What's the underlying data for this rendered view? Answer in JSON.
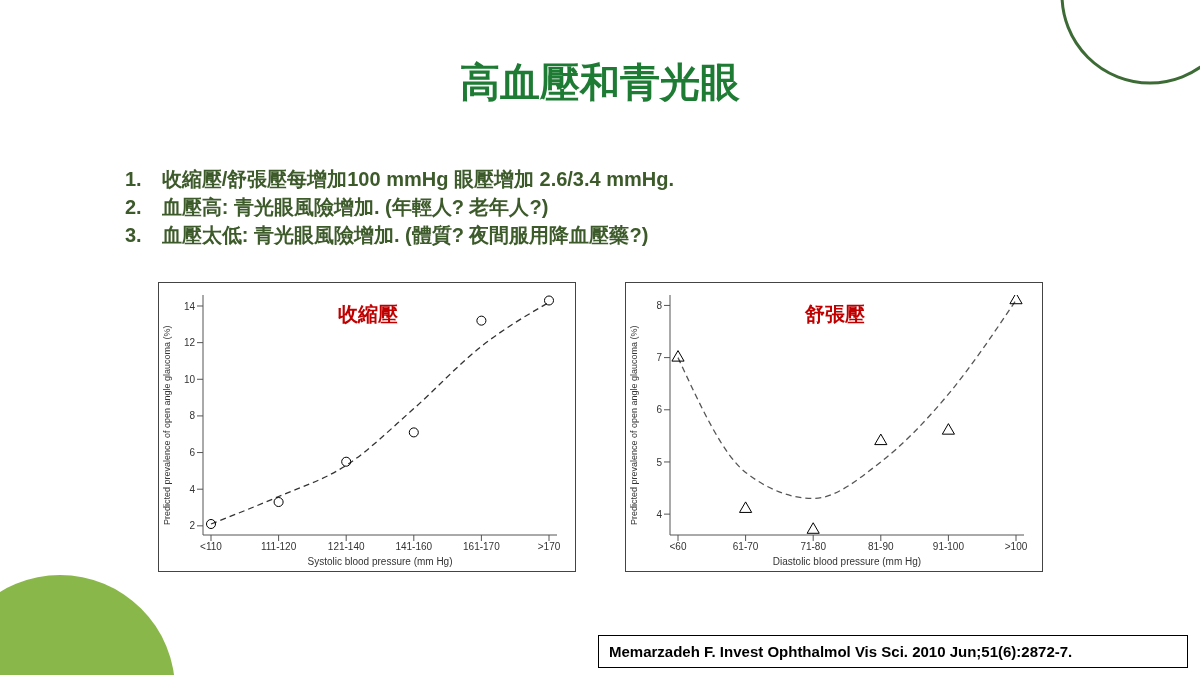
{
  "chart_data": [
    {
      "type": "other",
      "title": "高血壓和青光眼",
      "annotations": [
        "1.　收縮壓/舒張壓每增加100 mmHg 眼壓增加 2.6/3.4 mmHg.",
        "2.　血壓高: 青光眼風險增加. (年輕人? 老年人?)",
        "3.　血壓太低: 青光眼風險增加. (體質? 夜間服用降血壓藥?)",
        "Memarzadeh F. Invest Ophthalmol Vis Sci. 2010 Jun;51(6):2872-7."
      ]
    },
    {
      "type": "line",
      "title": "收縮壓",
      "xlabel": "Systolic blood pressure (mm Hg)",
      "ylabel": "Predicted prevalence of open angle glaucoma (%)",
      "categories": [
        "<110",
        "111-120",
        "121-140",
        "141-160",
        "161-170",
        ">170"
      ],
      "ylim": [
        1.5,
        14.6
      ],
      "yticks": [
        2,
        4,
        6,
        8,
        10,
        12,
        14
      ],
      "grid": false,
      "series": [
        {
          "type": "scatter",
          "marker": "circle",
          "color": "#000000",
          "values": [
            2.1,
            3.3,
            5.5,
            7.1,
            13.2,
            14.3
          ]
        },
        {
          "type": "line",
          "marker": "none",
          "line_style": "dashed",
          "color": "#333333",
          "values": [
            2.1,
            3.6,
            5.3,
            8.4,
            11.8,
            14.2
          ]
        }
      ]
    },
    {
      "type": "line",
      "title": "舒張壓",
      "xlabel": "Diastolic blood pressure (mm Hg)",
      "ylabel": "Predicted prevalence of open angle glaucoma (%)",
      "categories": [
        "<60",
        "61-70",
        "71-80",
        "81-90",
        "91-100",
        ">100"
      ],
      "ylim": [
        3.6,
        8.2
      ],
      "yticks": [
        4,
        5,
        6,
        7,
        8
      ],
      "grid": false,
      "series": [
        {
          "type": "scatter",
          "marker": "triangle",
          "color": "#000000",
          "values": [
            7.0,
            4.1,
            3.7,
            5.4,
            5.6,
            8.1
          ]
        },
        {
          "type": "line",
          "marker": "none",
          "line_style": "dashed",
          "color": "#555555",
          "values": [
            7.0,
            4.8,
            4.3,
            5.0,
            6.3,
            8.1
          ]
        }
      ]
    }
  ]
}
